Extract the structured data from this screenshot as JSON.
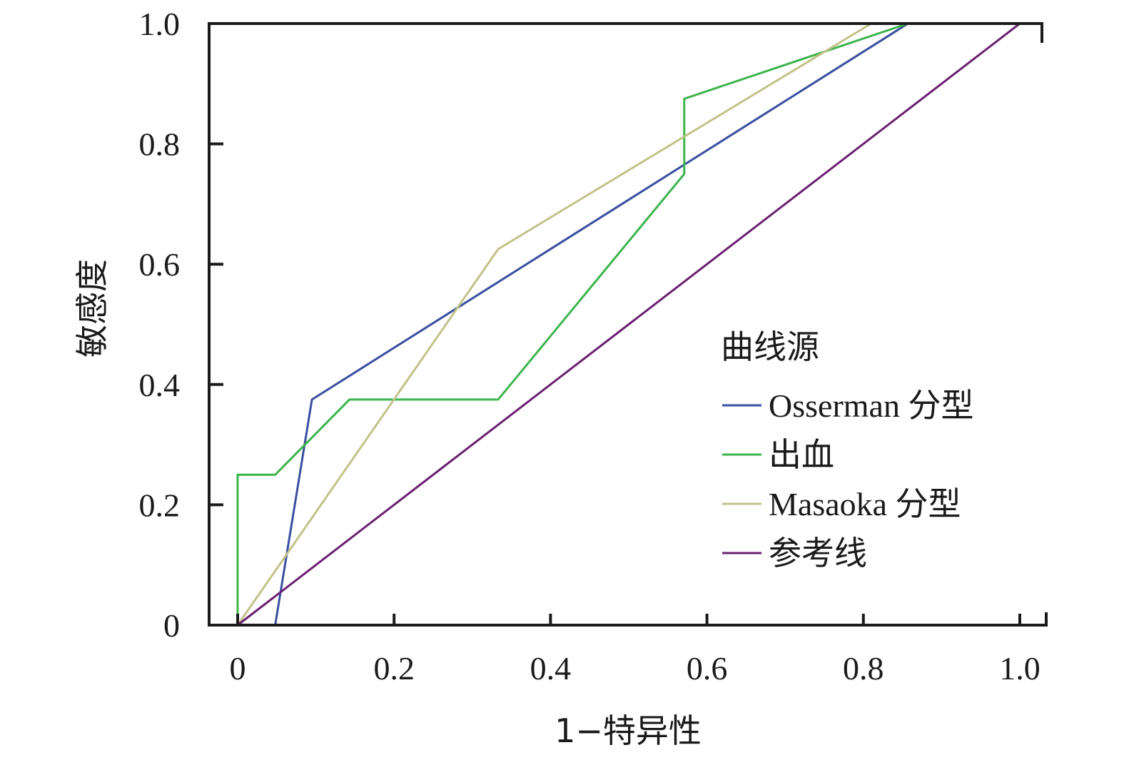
{
  "chart_data": {
    "type": "line",
    "title": "",
    "xlabel": "1−特异性",
    "ylabel": "敏感度",
    "xlim": [
      0,
      1.0
    ],
    "ylim": [
      0,
      1.0
    ],
    "x_ticks": [
      {
        "value": 0,
        "label": "0"
      },
      {
        "value": 0.2,
        "label": "0.2"
      },
      {
        "value": 0.4,
        "label": "0.4"
      },
      {
        "value": 0.6,
        "label": "0.6"
      },
      {
        "value": 0.8,
        "label": "0.8"
      },
      {
        "value": 1.0,
        "label": "1.0"
      }
    ],
    "y_ticks": [
      {
        "value": 0,
        "label": "0"
      },
      {
        "value": 0.2,
        "label": "0.2"
      },
      {
        "value": 0.4,
        "label": "0.4"
      },
      {
        "value": 0.6,
        "label": "0.6"
      },
      {
        "value": 0.8,
        "label": "0.8"
      },
      {
        "value": 1.0,
        "label": "1.0"
      }
    ],
    "grid": false,
    "legend": {
      "title": "曲线源",
      "placement": "lower-right"
    },
    "series": [
      {
        "name": "Osserman 分型",
        "color": "#3a4fa0",
        "points": [
          [
            0,
            0
          ],
          [
            0.048,
            0
          ],
          [
            0.095,
            0.375
          ],
          [
            0.857,
            1.0
          ],
          [
            1.0,
            1.0
          ]
        ]
      },
      {
        "name": "出血",
        "color": "#3cb44b",
        "points": [
          [
            0,
            0
          ],
          [
            0,
            0.25
          ],
          [
            0.048,
            0.25
          ],
          [
            0.143,
            0.375
          ],
          [
            0.333,
            0.375
          ],
          [
            0.571,
            0.75
          ],
          [
            0.571,
            0.875
          ],
          [
            0.857,
            1.0
          ],
          [
            1.0,
            1.0
          ]
        ]
      },
      {
        "name": "Masaoka 分型",
        "color": "#c2c28a",
        "points": [
          [
            0,
            0
          ],
          [
            0.333,
            0.625
          ],
          [
            0.81,
            1.0
          ],
          [
            1.0,
            1.0
          ]
        ]
      },
      {
        "name": "参考线",
        "color": "#6a2070",
        "points": [
          [
            0,
            0
          ],
          [
            1.0,
            1.0
          ]
        ]
      }
    ]
  }
}
